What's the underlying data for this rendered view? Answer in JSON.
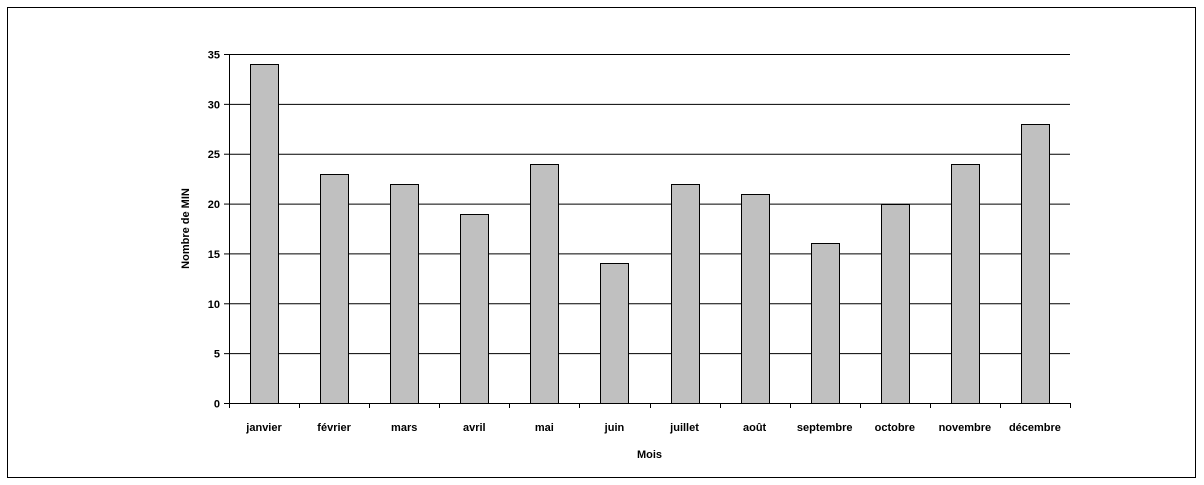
{
  "chart_data": {
    "type": "bar",
    "title": "",
    "xlabel": "Mois",
    "ylabel": "Nombre de MIN",
    "categories": [
      "janvier",
      "février",
      "mars",
      "avril",
      "mai",
      "juin",
      "juillet",
      "août",
      "septembre",
      "octobre",
      "novembre",
      "décembre"
    ],
    "values": [
      34,
      23,
      22,
      19,
      24,
      14,
      22,
      21,
      16,
      20,
      24,
      28
    ],
    "ylim": [
      0,
      35
    ],
    "yticks": [
      0,
      5,
      10,
      15,
      20,
      25,
      30,
      35
    ],
    "grid": true,
    "legend": "none",
    "colors": {
      "bar_fill": "#c0c0c0",
      "bar_stroke": "#000000",
      "grid": "#000000",
      "axis": "#000000"
    }
  }
}
